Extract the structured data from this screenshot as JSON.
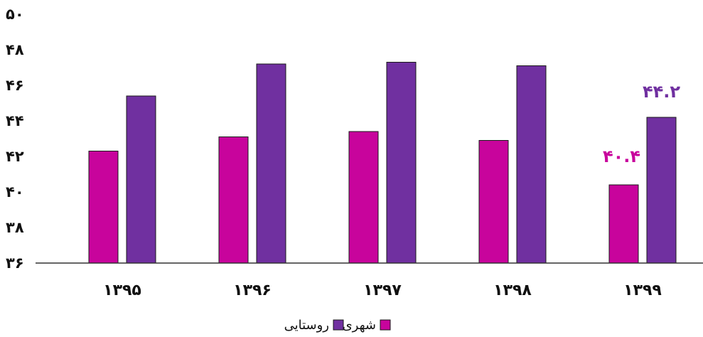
{
  "chart_data": {
    "type": "bar",
    "categories": [
      "۱۳۹۵",
      "۱۳۹۶",
      "۱۳۹۷",
      "۱۳۹۸",
      "۱۳۹۹"
    ],
    "series": [
      {
        "name": "شهری",
        "color": "#C8049C",
        "values": [
          42.3,
          43.1,
          43.4,
          42.9,
          40.4
        ]
      },
      {
        "name": "روستایی",
        "color": "#7030A0",
        "values": [
          45.4,
          47.2,
          47.3,
          47.1,
          44.2
        ]
      }
    ],
    "y_ticks": [
      36,
      38,
      40,
      42,
      44,
      46,
      48,
      50
    ],
    "y_tick_labels": [
      "۳۶",
      "۳۸",
      "۴۰",
      "۴۲",
      "۴۴",
      "۴۶",
      "۴۸",
      "۵۰"
    ],
    "ylim": [
      36,
      50
    ],
    "data_labels": [
      {
        "series": 0,
        "category": 4,
        "text": "۴۰.۴"
      },
      {
        "series": 1,
        "category": 4,
        "text": "۴۴.۲"
      }
    ],
    "legend_position": "bottom",
    "grid": false,
    "title": "",
    "xlabel": "",
    "ylabel": ""
  }
}
